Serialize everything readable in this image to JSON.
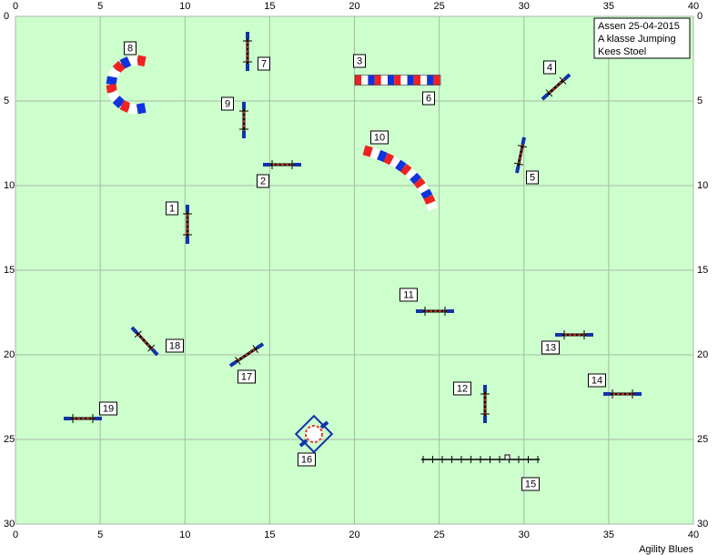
{
  "axes": {
    "x_ticks": [
      0,
      5,
      10,
      15,
      20,
      25,
      30,
      35,
      40
    ],
    "y_ticks": [
      0,
      5,
      10,
      15,
      20,
      25,
      30
    ]
  },
  "info": [
    "Assen  25-04-2015",
    "A klasse Jumping",
    "Kees Stoel"
  ],
  "obstacles": [
    "1",
    "2",
    "3",
    "4",
    "5",
    "6",
    "7",
    "8",
    "9",
    "10",
    "11",
    "12",
    "13",
    "14",
    "15",
    "16",
    "17",
    "18",
    "19"
  ],
  "footer": "Agility Blues"
}
